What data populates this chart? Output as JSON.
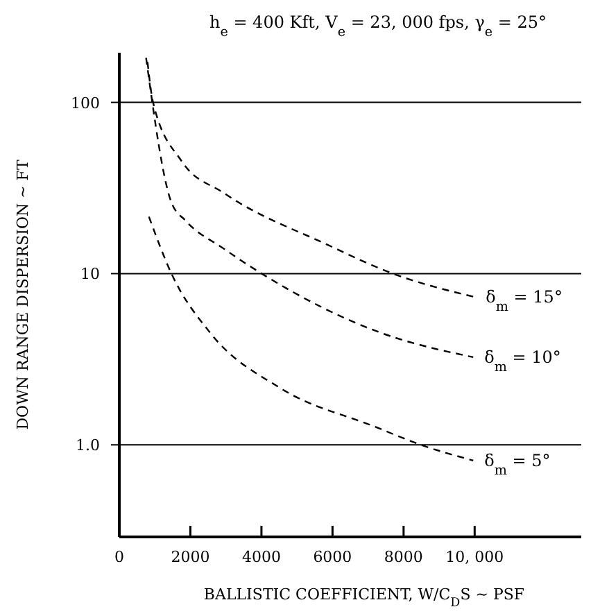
{
  "chart_data": {
    "type": "line",
    "title": "h$_{e}$ = 400 Kft,  V$_{e}$ = 23, 000 fps,  γ$_{e}$ = 25°",
    "xlabel": "BALLISTIC COEFFICIENT,  W/C$_{D}$S ~ PSF",
    "ylabel": "DOWN RANGE DISPERSION ~ FT",
    "log": "y",
    "grid": "y",
    "line_style": "dashed",
    "marker": "none",
    "xlim": [
      0,
      13000
    ],
    "ylim": [
      0.29,
      195
    ],
    "xticks": [
      0,
      2000,
      4000,
      6000,
      8000,
      {
        "value": 10000,
        "label": "10, 000"
      }
    ],
    "yticks": [
      {
        "value": 1,
        "label": "1.0"
      },
      10,
      100
    ],
    "series": [
      {
        "name": "δ$_{m}$ = 15°",
        "color": "#000000",
        "x": [
          794,
          950,
          1746,
          2937,
          5840,
          7700,
          10000
        ],
        "values": [
          172,
          100,
          45.6,
          29.6,
          14.8,
          10,
          7.3
        ]
      },
      {
        "name": "δ$_{m}$ = 10°",
        "color": "#000000",
        "x": [
          754,
          1468,
          1865,
          2937,
          4008,
          7300,
          9960
        ],
        "values": [
          182,
          26,
          20.4,
          14,
          10,
          4.56,
          3.25
        ]
      },
      {
        "name": "δ$_{m}$ = 5°",
        "color": "#000000",
        "x": [
          833,
          1468,
          2540,
          4524,
          7180,
          8490,
          9960
        ],
        "values": [
          21.5,
          10,
          4.56,
          2.15,
          1.28,
          1,
          0.81
        ]
      }
    ]
  }
}
